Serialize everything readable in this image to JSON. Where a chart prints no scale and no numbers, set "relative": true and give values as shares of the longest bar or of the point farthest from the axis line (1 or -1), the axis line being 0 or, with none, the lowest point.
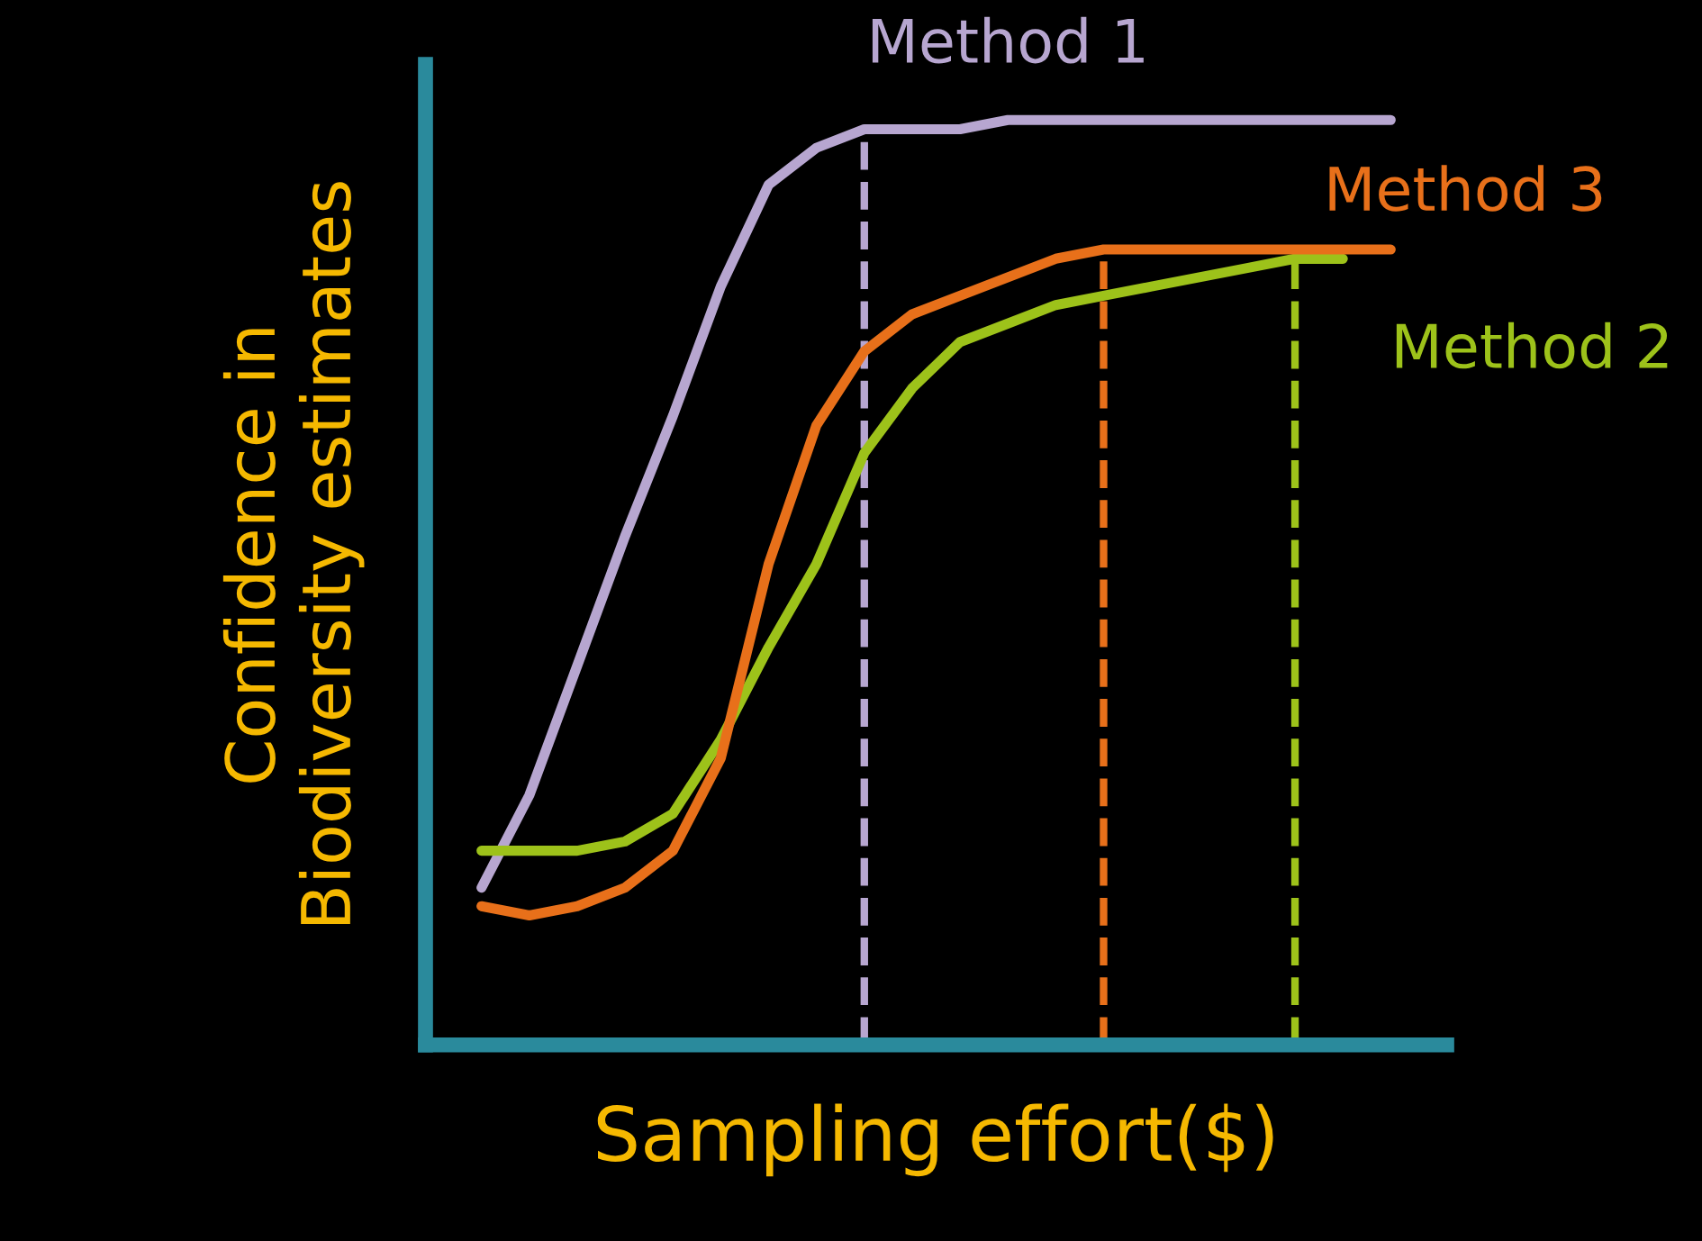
{
  "chart_data": {
    "type": "line",
    "relative": true,
    "xlabel": "Sampling effort($)",
    "ylabel": "Confidence in\nBiodiversity estimates",
    "categories": [
      null,
      null,
      null,
      null,
      null,
      null,
      null,
      null,
      null,
      null,
      null,
      null,
      null,
      null,
      null,
      null,
      null,
      null,
      null,
      null
    ],
    "series": [
      {
        "name": "Method 1",
        "color": "#b7a6d0",
        "values": [
          0.17,
          0.27,
          0.41,
          0.55,
          0.68,
          0.82,
          0.93,
          0.97,
          0.99,
          0.99,
          0.99,
          1.0,
          1.0,
          1.0,
          1.0,
          1.0,
          1.0,
          1.0,
          1.0,
          1.0
        ]
      },
      {
        "name": "Method 2",
        "color": "#9dc21a",
        "values": [
          0.21,
          0.21,
          0.21,
          0.22,
          0.25,
          0.33,
          0.43,
          0.52,
          0.64,
          0.71,
          0.76,
          0.78,
          0.8,
          0.81,
          0.82,
          0.83,
          0.84,
          0.85,
          0.85,
          null
        ]
      },
      {
        "name": "Method 3",
        "color": "#e8701a",
        "values": [
          0.15,
          0.14,
          0.15,
          0.17,
          0.21,
          0.31,
          0.52,
          0.67,
          0.75,
          0.79,
          0.81,
          0.83,
          0.85,
          0.86,
          0.86,
          0.86,
          0.86,
          0.86,
          0.86,
          0.86
        ]
      }
    ],
    "line_style": "solid",
    "marker": "none",
    "grid": false,
    "legend": false
  }
}
